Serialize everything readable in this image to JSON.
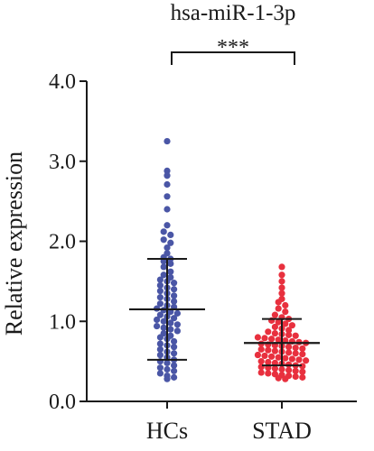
{
  "chart_data": {
    "type": "scatter",
    "title": "hsa-miR-1-3p",
    "ylabel": "Relative expression",
    "xlabel": "",
    "ylim": [
      0,
      4
    ],
    "yticks": [
      "0.0",
      "1.0",
      "2.0",
      "3.0",
      "4.0"
    ],
    "categories": [
      "HCs",
      "STAD"
    ],
    "significance": "***",
    "grid": false,
    "legend": "none",
    "series": [
      {
        "category": "HCs",
        "color": "#4a56a6",
        "mean": 1.15,
        "sd_low": 0.52,
        "sd_high": 1.78,
        "values": [
          3.25,
          2.88,
          2.82,
          2.71,
          2.56,
          2.4,
          2.2,
          2.12,
          2.08,
          2.02,
          1.98,
          1.92,
          1.85,
          1.8,
          1.78,
          1.75,
          1.72,
          1.68,
          1.62,
          1.58,
          1.55,
          1.52,
          1.5,
          1.48,
          1.45,
          1.42,
          1.4,
          1.38,
          1.35,
          1.32,
          1.3,
          1.28,
          1.25,
          1.22,
          1.2,
          1.18,
          1.16,
          1.14,
          1.12,
          1.1,
          1.08,
          1.06,
          1.04,
          1.02,
          1.0,
          0.98,
          0.96,
          0.94,
          0.92,
          0.9,
          0.88,
          0.85,
          0.82,
          0.8,
          0.78,
          0.75,
          0.72,
          0.7,
          0.68,
          0.65,
          0.62,
          0.6,
          0.58,
          0.55,
          0.52,
          0.5,
          0.48,
          0.45,
          0.42,
          0.4,
          0.38,
          0.35,
          0.32,
          0.3,
          0.28
        ]
      },
      {
        "category": "STAD",
        "color": "#e8303e",
        "mean": 0.73,
        "sd_low": 0.45,
        "sd_high": 1.03,
        "values": [
          1.68,
          1.58,
          1.5,
          1.42,
          1.35,
          1.28,
          1.24,
          1.2,
          1.16,
          1.12,
          1.08,
          1.05,
          1.03,
          1.01,
          0.99,
          0.97,
          0.95,
          0.93,
          0.91,
          0.89,
          0.87,
          0.85,
          0.84,
          0.83,
          0.82,
          0.8,
          0.79,
          0.78,
          0.77,
          0.76,
          0.75,
          0.74,
          0.73,
          0.72,
          0.71,
          0.7,
          0.69,
          0.68,
          0.67,
          0.66,
          0.65,
          0.64,
          0.63,
          0.62,
          0.61,
          0.6,
          0.59,
          0.58,
          0.57,
          0.56,
          0.55,
          0.54,
          0.53,
          0.52,
          0.51,
          0.5,
          0.49,
          0.48,
          0.47,
          0.46,
          0.45,
          0.44,
          0.43,
          0.42,
          0.41,
          0.4,
          0.39,
          0.38,
          0.37,
          0.36,
          0.35,
          0.34,
          0.33,
          0.32,
          0.31,
          0.3,
          0.29,
          0.28
        ]
      }
    ]
  }
}
